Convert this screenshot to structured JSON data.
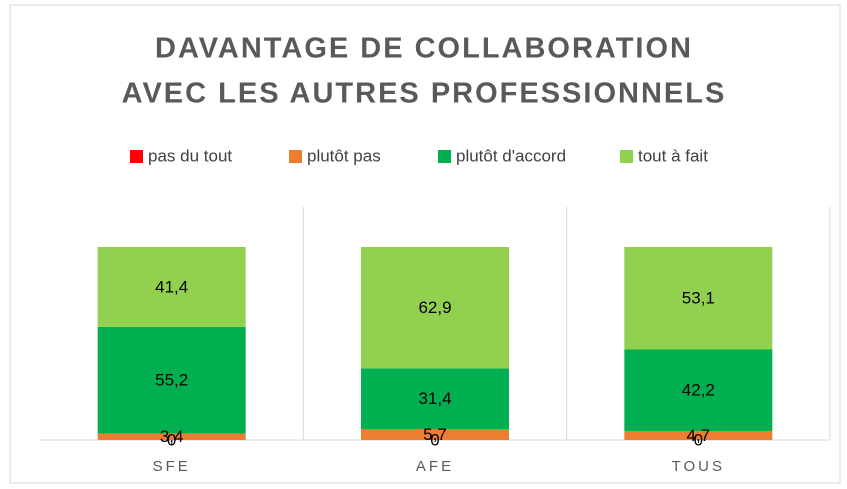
{
  "chart_data": {
    "type": "stacked_bar",
    "title": [
      "DAVANTAGE DE COLLABORATION",
      "AVEC LES AUTRES PROFESSIONNELS"
    ],
    "categories": [
      "SFE",
      "AFE",
      "TOUS"
    ],
    "series": [
      {
        "name": "pas du tout",
        "color": "#ff0000",
        "values": [
          0,
          0,
          0
        ],
        "value_labels": [
          "0",
          "0",
          "0"
        ]
      },
      {
        "name": "plutôt pas",
        "color": "#ed7d31",
        "values": [
          3.4,
          5.7,
          4.7
        ],
        "value_labels": [
          "3,4",
          "5,7",
          "4,7"
        ]
      },
      {
        "name": "plutôt d'accord",
        "color": "#00b050",
        "values": [
          55.2,
          31.4,
          42.2
        ],
        "value_labels": [
          "55,2",
          "31,4",
          "42,2"
        ]
      },
      {
        "name": "tout à fait",
        "color": "#92d050",
        "values": [
          41.4,
          62.9,
          53.1
        ],
        "value_labels": [
          "41,4",
          "62,9",
          "53,1"
        ]
      }
    ],
    "legend": "top"
  }
}
